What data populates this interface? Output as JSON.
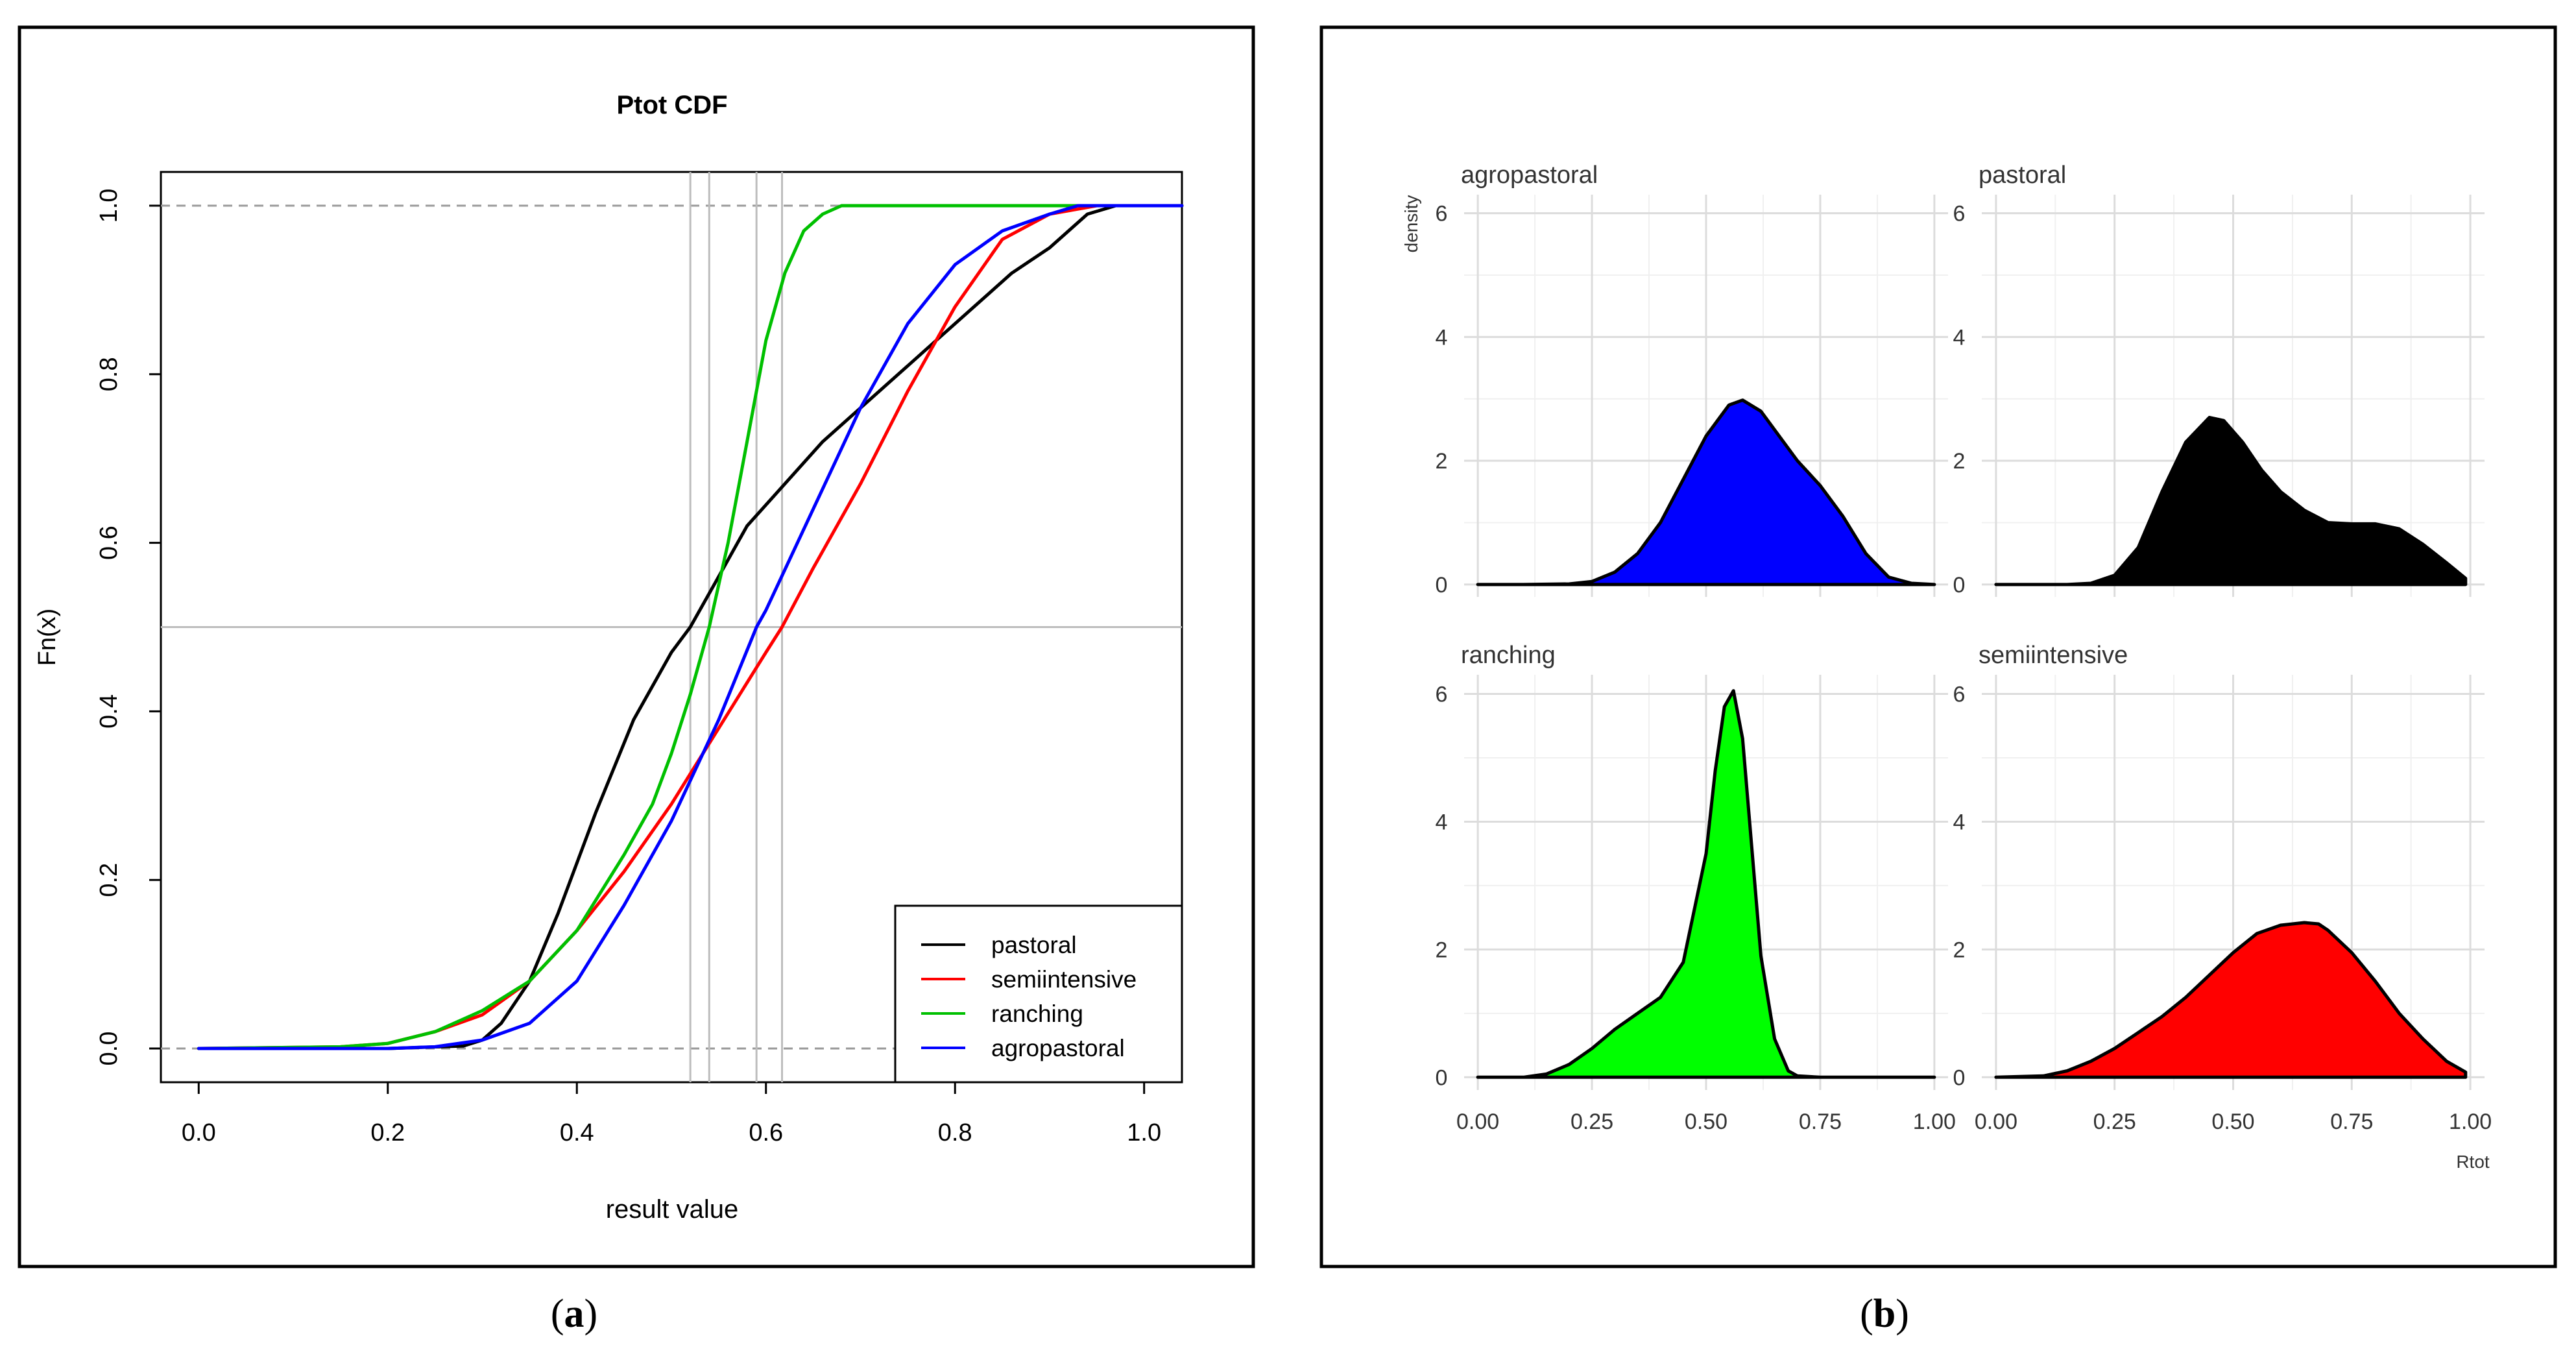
{
  "chart_data": [
    {
      "type": "line",
      "panel": "a",
      "caption_letter": "a",
      "title": "Ptot CDF",
      "xlabel": "result value",
      "ylabel": "Fn(x)",
      "xlim": [
        -0.04,
        1.04
      ],
      "ylim": [
        -0.04,
        1.04
      ],
      "xticks": [
        "0.0",
        "0.2",
        "0.4",
        "0.6",
        "0.8",
        "1.0"
      ],
      "yticks": [
        "0.0",
        "0.2",
        "0.4",
        "0.6",
        "0.8",
        "1.0"
      ],
      "dashed_hlines": [
        0,
        1
      ],
      "hline": 0.5,
      "vlines": [
        0.52,
        0.54,
        0.59,
        0.617
      ],
      "legend_position": "bottom-right",
      "colors": {
        "pastoral": "#000000",
        "semiintensive": "#ff0000",
        "ranching": "#00c000",
        "agropastoral": "#0000ff"
      },
      "series": [
        {
          "name": "pastoral",
          "x": [
            0.0,
            0.2,
            0.28,
            0.3,
            0.32,
            0.35,
            0.38,
            0.42,
            0.46,
            0.5,
            0.52,
            0.55,
            0.58,
            0.62,
            0.66,
            0.7,
            0.74,
            0.78,
            0.82,
            0.86,
            0.9,
            0.94,
            0.97,
            1.0,
            1.04
          ],
          "y": [
            0.0,
            0.0,
            0.003,
            0.01,
            0.03,
            0.08,
            0.16,
            0.28,
            0.39,
            0.47,
            0.5,
            0.56,
            0.62,
            0.67,
            0.72,
            0.76,
            0.8,
            0.84,
            0.88,
            0.92,
            0.95,
            0.99,
            1.0,
            1.0,
            1.0
          ]
        },
        {
          "name": "semiintensive",
          "x": [
            0.0,
            0.15,
            0.2,
            0.25,
            0.3,
            0.35,
            0.4,
            0.45,
            0.5,
            0.55,
            0.6,
            0.617,
            0.65,
            0.7,
            0.75,
            0.8,
            0.85,
            0.9,
            0.95,
            1.0,
            1.04
          ],
          "y": [
            0.0,
            0.002,
            0.006,
            0.02,
            0.04,
            0.08,
            0.14,
            0.21,
            0.29,
            0.38,
            0.47,
            0.5,
            0.57,
            0.67,
            0.78,
            0.88,
            0.96,
            0.99,
            1.0,
            1.0,
            1.0
          ]
        },
        {
          "name": "ranching",
          "x": [
            0.0,
            0.15,
            0.2,
            0.25,
            0.3,
            0.35,
            0.4,
            0.45,
            0.48,
            0.5,
            0.52,
            0.54,
            0.56,
            0.58,
            0.6,
            0.62,
            0.64,
            0.66,
            0.68,
            0.7,
            1.04
          ],
          "y": [
            0.0,
            0.002,
            0.006,
            0.02,
            0.045,
            0.08,
            0.14,
            0.23,
            0.29,
            0.35,
            0.42,
            0.5,
            0.6,
            0.72,
            0.84,
            0.92,
            0.97,
            0.99,
            1.0,
            1.0,
            1.0
          ]
        },
        {
          "name": "agropastoral",
          "x": [
            0.0,
            0.2,
            0.25,
            0.3,
            0.35,
            0.4,
            0.45,
            0.5,
            0.55,
            0.59,
            0.6,
            0.65,
            0.7,
            0.75,
            0.8,
            0.85,
            0.9,
            0.93,
            0.95,
            1.0,
            1.04
          ],
          "y": [
            0.0,
            0.0,
            0.002,
            0.01,
            0.03,
            0.08,
            0.17,
            0.27,
            0.39,
            0.5,
            0.52,
            0.64,
            0.76,
            0.86,
            0.93,
            0.97,
            0.99,
            1.0,
            1.0,
            1.0,
            1.0
          ]
        }
      ]
    },
    {
      "type": "area",
      "panel": "b",
      "caption_letter": "b",
      "xlabel": "Rtot",
      "ylabel": "density",
      "xlim": [
        -0.03,
        1.03
      ],
      "ylim": [
        -0.2,
        6.3
      ],
      "xticks": [
        "0.00",
        "0.25",
        "0.50",
        "0.75",
        "1.00"
      ],
      "yticks": [
        "0",
        "2",
        "4",
        "6"
      ],
      "facets": [
        {
          "name": "agropastoral",
          "color": "#0000ff",
          "x": [
            0.0,
            0.1,
            0.2,
            0.25,
            0.3,
            0.35,
            0.4,
            0.45,
            0.5,
            0.55,
            0.58,
            0.62,
            0.66,
            0.7,
            0.75,
            0.8,
            0.85,
            0.9,
            0.95,
            1.0
          ],
          "y": [
            0.0,
            0.0,
            0.01,
            0.05,
            0.2,
            0.5,
            1.0,
            1.7,
            2.4,
            2.9,
            2.98,
            2.8,
            2.4,
            2.0,
            1.6,
            1.1,
            0.5,
            0.12,
            0.02,
            0.0
          ]
        },
        {
          "name": "pastoral",
          "color": "#000000",
          "x": [
            0.0,
            0.15,
            0.2,
            0.25,
            0.3,
            0.35,
            0.4,
            0.45,
            0.48,
            0.52,
            0.56,
            0.6,
            0.65,
            0.7,
            0.75,
            0.8,
            0.85,
            0.9,
            0.95,
            0.99
          ],
          "y": [
            0.0,
            0.0,
            0.02,
            0.15,
            0.6,
            1.5,
            2.3,
            2.7,
            2.65,
            2.3,
            1.85,
            1.5,
            1.2,
            1.0,
            0.98,
            0.98,
            0.9,
            0.65,
            0.35,
            0.1
          ]
        },
        {
          "name": "ranching",
          "color": "#00ff00",
          "x": [
            0.0,
            0.1,
            0.15,
            0.2,
            0.25,
            0.3,
            0.35,
            0.4,
            0.45,
            0.5,
            0.52,
            0.54,
            0.56,
            0.58,
            0.6,
            0.62,
            0.65,
            0.68,
            0.7,
            0.75,
            1.0
          ],
          "y": [
            0.0,
            0.0,
            0.05,
            0.2,
            0.45,
            0.75,
            1.0,
            1.25,
            1.8,
            3.5,
            4.8,
            5.8,
            6.05,
            5.3,
            3.6,
            1.9,
            0.6,
            0.1,
            0.02,
            0.0,
            0.0
          ]
        },
        {
          "name": "semiintensive",
          "color": "#ff0000",
          "x": [
            0.0,
            0.1,
            0.15,
            0.2,
            0.25,
            0.3,
            0.35,
            0.4,
            0.45,
            0.5,
            0.55,
            0.6,
            0.65,
            0.68,
            0.7,
            0.75,
            0.8,
            0.85,
            0.9,
            0.95,
            0.99
          ],
          "y": [
            0.0,
            0.02,
            0.1,
            0.25,
            0.45,
            0.7,
            0.95,
            1.25,
            1.6,
            1.95,
            2.25,
            2.38,
            2.42,
            2.4,
            2.3,
            1.95,
            1.5,
            1.0,
            0.6,
            0.25,
            0.08
          ]
        }
      ]
    }
  ]
}
